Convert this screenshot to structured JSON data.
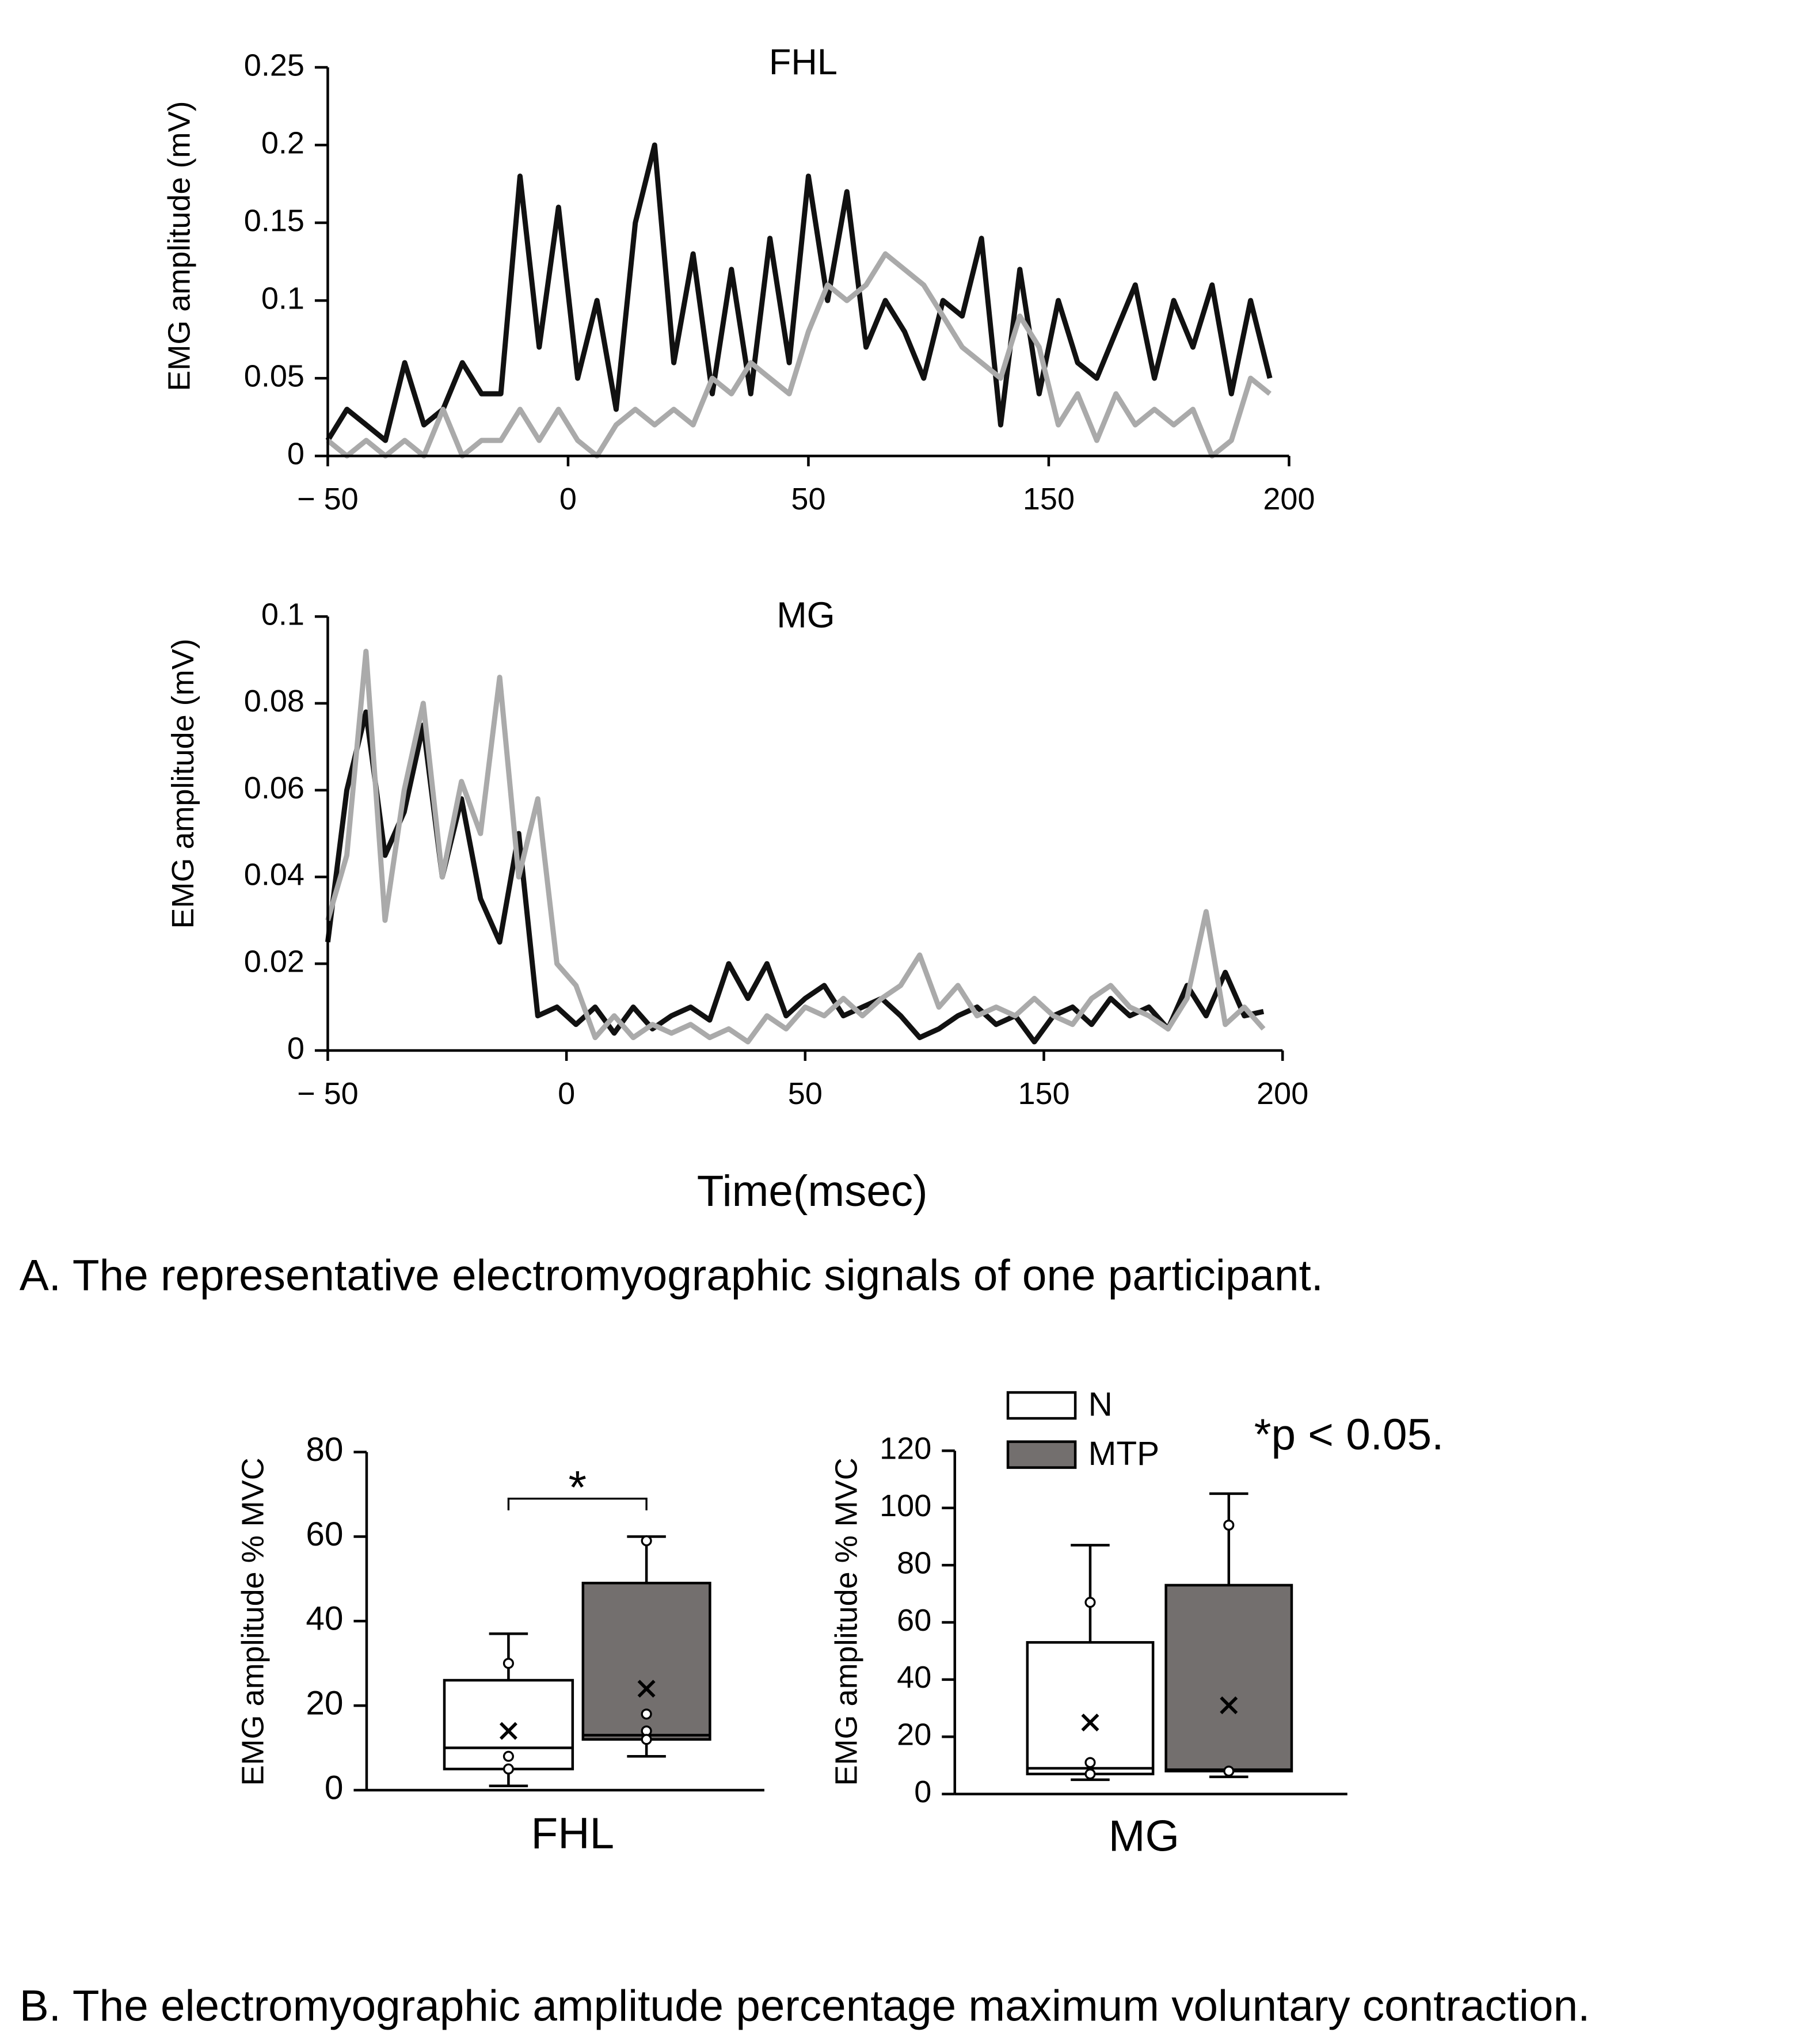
{
  "captions": [
    "A. The representative electromyographic signals of one participant.",
    "B. The electromyographic amplitude percentage maximum voluntary contraction."
  ],
  "chart_data": [
    {
      "type": "line",
      "title": "FHL",
      "y_label": "EMG amplitude (mV)",
      "x": [
        -50,
        -46,
        -42,
        -38,
        -34,
        -30,
        -26,
        -22,
        -18,
        -14,
        -10,
        -6,
        -2,
        2,
        6,
        10,
        14,
        18,
        22,
        26,
        30,
        34,
        38,
        42,
        46,
        50,
        54,
        58,
        62,
        66,
        70,
        74,
        78,
        82,
        86,
        90,
        94,
        98,
        102,
        106,
        110,
        114,
        118,
        122,
        126,
        130,
        134,
        138,
        142,
        146
      ],
      "xlim": [
        -50,
        150
      ],
      "xticks": [
        {
          "value": -50,
          "label": "− 50"
        },
        0,
        50,
        {
          "value": 100,
          "label": "150"
        },
        {
          "value": 150,
          "label": "200"
        }
      ],
      "ylim": [
        0,
        0.25
      ],
      "yticks": [
        0,
        0.05,
        0.1,
        0.15,
        0.2,
        0.25
      ],
      "series": [
        {
          "color": "#111111",
          "values": [
            0.01,
            0.03,
            0.02,
            0.01,
            0.06,
            0.02,
            0.03,
            0.06,
            0.04,
            0.04,
            0.18,
            0.07,
            0.16,
            0.05,
            0.1,
            0.03,
            0.15,
            0.2,
            0.06,
            0.13,
            0.04,
            0.12,
            0.04,
            0.14,
            0.06,
            0.18,
            0.1,
            0.17,
            0.07,
            0.1,
            0.08,
            0.05,
            0.1,
            0.09,
            0.14,
            0.02,
            0.12,
            0.04,
            0.1,
            0.06,
            0.05,
            0.08,
            0.11,
            0.05,
            0.1,
            0.07,
            0.11,
            0.04,
            0.1,
            0.05
          ]
        },
        {
          "color": "#aaaaaa",
          "values": [
            0.01,
            0,
            0.01,
            0,
            0.01,
            0,
            0.03,
            0,
            0.01,
            0.01,
            0.03,
            0.01,
            0.03,
            0.01,
            0,
            0.02,
            0.03,
            0.02,
            0.03,
            0.02,
            0.05,
            0.04,
            0.06,
            0.05,
            0.04,
            0.08,
            0.11,
            0.1,
            0.11,
            0.13,
            0.12,
            0.11,
            0.09,
            0.07,
            0.06,
            0.05,
            0.09,
            0.07,
            0.02,
            0.04,
            0.01,
            0.04,
            0.02,
            0.03,
            0.02,
            0.03,
            0,
            0.01,
            0.05,
            0.04
          ]
        }
      ]
    },
    {
      "type": "line",
      "title": "MG",
      "y_label": "EMG amplitude  (mV)",
      "x_label": "Time(msec)",
      "x": [
        -50,
        -46,
        -42,
        -38,
        -34,
        -30,
        -26,
        -22,
        -18,
        -14,
        -10,
        -6,
        -2,
        2,
        6,
        10,
        14,
        18,
        22,
        26,
        30,
        34,
        38,
        42,
        46,
        50,
        54,
        58,
        62,
        66,
        70,
        74,
        78,
        82,
        86,
        90,
        94,
        98,
        102,
        106,
        110,
        114,
        118,
        122,
        126,
        130,
        134,
        138,
        142,
        146
      ],
      "xlim": [
        -50,
        150
      ],
      "xticks": [
        {
          "value": -50,
          "label": "− 50"
        },
        0,
        50,
        {
          "value": 100,
          "label": "150"
        },
        {
          "value": 150,
          "label": "200"
        }
      ],
      "ylim": [
        0,
        0.1
      ],
      "yticks": [
        0,
        0.02,
        0.04,
        0.06,
        0.08,
        0.1
      ],
      "series": [
        {
          "color": "#111111",
          "values": [
            0.025,
            0.06,
            0.078,
            0.045,
            0.055,
            0.075,
            0.04,
            0.058,
            0.035,
            0.025,
            0.05,
            0.008,
            0.01,
            0.006,
            0.01,
            0.004,
            0.01,
            0.005,
            0.008,
            0.01,
            0.007,
            0.02,
            0.012,
            0.02,
            0.008,
            0.012,
            0.015,
            0.008,
            0.01,
            0.012,
            0.008,
            0.003,
            0.005,
            0.008,
            0.01,
            0.006,
            0.008,
            0.002,
            0.008,
            0.01,
            0.006,
            0.012,
            0.008,
            0.01,
            0.005,
            0.015,
            0.008,
            0.018,
            0.008,
            0.009
          ]
        },
        {
          "color": "#aaaaaa",
          "values": [
            0.03,
            0.045,
            0.092,
            0.03,
            0.06,
            0.08,
            0.04,
            0.062,
            0.05,
            0.086,
            0.04,
            0.058,
            0.02,
            0.015,
            0.003,
            0.008,
            0.003,
            0.006,
            0.004,
            0.006,
            0.003,
            0.005,
            0.002,
            0.008,
            0.005,
            0.01,
            0.008,
            0.012,
            0.008,
            0.012,
            0.015,
            0.022,
            0.01,
            0.015,
            0.008,
            0.01,
            0.008,
            0.012,
            0.008,
            0.006,
            0.012,
            0.015,
            0.01,
            0.008,
            0.005,
            0.012,
            0.032,
            0.006,
            0.01,
            0.005
          ]
        }
      ]
    },
    {
      "type": "box",
      "y_label": "EMG amplitude % MVC",
      "categories": [
        "FHL"
      ],
      "ylim": [
        0,
        80
      ],
      "yticks": [
        0,
        20,
        40,
        60,
        80
      ],
      "significance": "*",
      "series": [
        {
          "color": "#ffffff",
          "whisker_low": [
            1
          ],
          "q1": [
            5
          ],
          "median": [
            10
          ],
          "q3": [
            26
          ],
          "whisker_high": [
            37
          ],
          "mean": [
            14
          ],
          "points": [
            [
              30,
              8,
              5
            ]
          ]
        },
        {
          "color": "#736f6e",
          "whisker_low": [
            8
          ],
          "q1": [
            12
          ],
          "median": [
            13
          ],
          "q3": [
            49
          ],
          "whisker_high": [
            60
          ],
          "mean": [
            24
          ],
          "points": [
            [
              59,
              18,
              14,
              12
            ]
          ]
        }
      ]
    },
    {
      "type": "box",
      "y_label": "EMG amplitude % MVC",
      "categories": [
        "MG"
      ],
      "annotation": "*p < 0.05.",
      "legend": "top-left",
      "ylim": [
        0,
        120
      ],
      "yticks": [
        0,
        20,
        40,
        60,
        80,
        100,
        120
      ],
      "series": [
        {
          "name": "N",
          "color": "#ffffff",
          "whisker_low": [
            5
          ],
          "q1": [
            7
          ],
          "median": [
            9
          ],
          "q3": [
            53
          ],
          "whisker_high": [
            87
          ],
          "mean": [
            25
          ],
          "points": [
            [
              67,
              11,
              7
            ]
          ]
        },
        {
          "name": "MTP",
          "color": "#736f6e",
          "whisker_low": [
            6
          ],
          "q1": [
            8
          ],
          "median": [
            8.5
          ],
          "q3": [
            73
          ],
          "whisker_high": [
            105
          ],
          "mean": [
            31
          ],
          "points": [
            [
              94,
              8
            ]
          ]
        }
      ]
    }
  ]
}
